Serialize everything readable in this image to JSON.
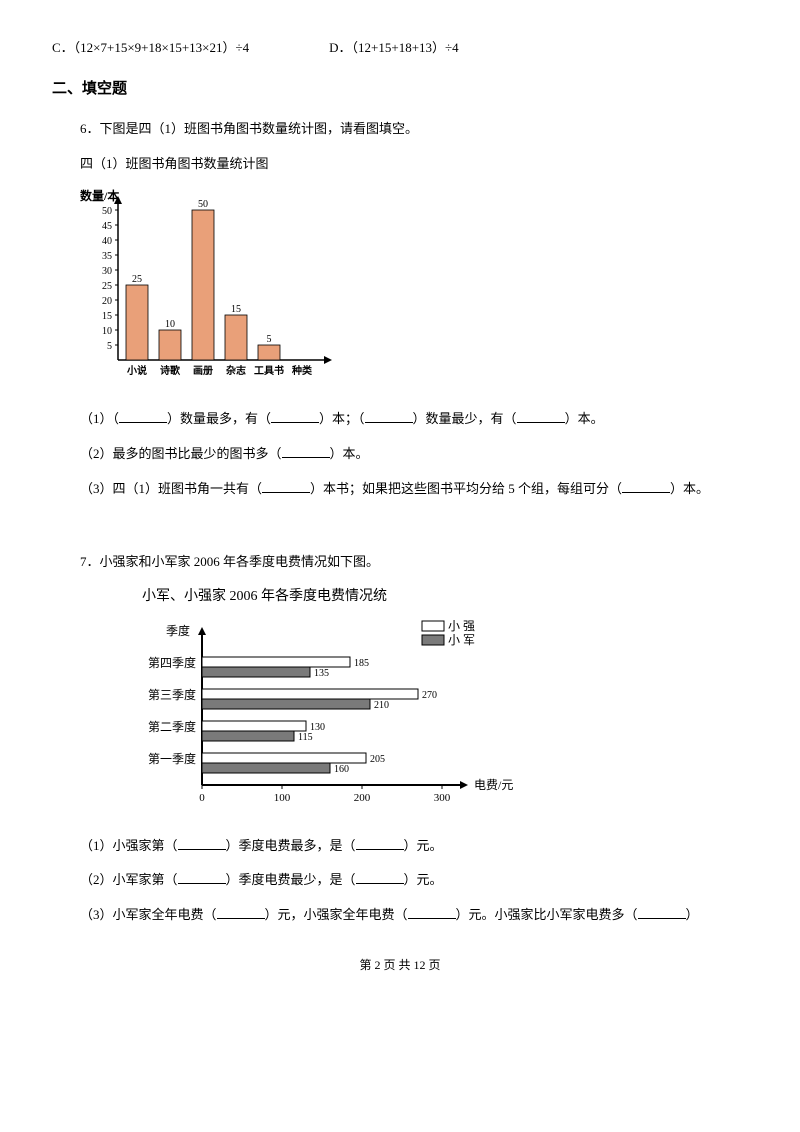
{
  "topOptions": {
    "c": "C．（12×7+15×9+18×15+13×21）÷4",
    "d": "D．（12+15+18+13）÷4"
  },
  "sectionTitle": "二、填空题",
  "q6": {
    "stem": "6．下图是四（1）班图书角图书数量统计图，请看图填空。",
    "chartTitle": "四（1）班图书角图书数量统计图",
    "yLabel": "数量/本",
    "yTicksStart": 5,
    "yTicksEnd": 50,
    "yTickStep": 5,
    "categories": [
      "小说",
      "诗歌",
      "画册",
      "杂志",
      "工具书",
      "种类"
    ],
    "bars": [
      {
        "label": "小说",
        "value": 25
      },
      {
        "label": "诗歌",
        "value": 10
      },
      {
        "label": "画册",
        "value": 50
      },
      {
        "label": "杂志",
        "value": 15
      },
      {
        "label": "工具书",
        "value": 5
      }
    ],
    "barFill": "#e9a079",
    "barStroke": "#000000",
    "sub1a": "（1）（",
    "sub1b": "）数量最多，有（",
    "sub1c": "）本；（",
    "sub1d": "）数量最少，有（",
    "sub1e": "）本。",
    "sub2a": "（2）最多的图书比最少的图书多（",
    "sub2b": "）本。",
    "sub3a": "（3）四（1）班图书角一共有（",
    "sub3b": "）本书；如果把这些图书平均分给 5 个组，每组可分（",
    "sub3c": "）本。"
  },
  "q7": {
    "stem": "7．小强家和小军家 2006 年各季度电费情况如下图。",
    "chartTitle": "小军、小强家 2006 年各季度电费情况统",
    "yLabel": "季度",
    "xLabel": "电费/元",
    "legend": {
      "xq": "小 强",
      "xj": "小 军"
    },
    "legendColors": {
      "xq": "#ffffff",
      "xj": "#7a7a7a"
    },
    "xTicks": [
      0,
      100,
      200,
      300
    ],
    "rows": [
      {
        "cat": "第四季度",
        "xq": 185,
        "xj": 135
      },
      {
        "cat": "第三季度",
        "xq": 270,
        "xj": 210
      },
      {
        "cat": "第二季度",
        "xq": 130,
        "xj": 115
      },
      {
        "cat": "第一季度",
        "xq": 205,
        "xj": 160
      }
    ],
    "sub1a": "（1）小强家第（",
    "sub1b": "）季度电费最多，是（",
    "sub1c": "）元。",
    "sub2a": "（2）小军家第（",
    "sub2b": "）季度电费最少，是（",
    "sub2c": "）元。",
    "sub3a": "（3）小军家全年电费（",
    "sub3b": "）元，小强家全年电费（",
    "sub3c": "）元。小强家比小军家电费多（",
    "sub3d": "）"
  },
  "footer": "第 2 页 共 12 页"
}
